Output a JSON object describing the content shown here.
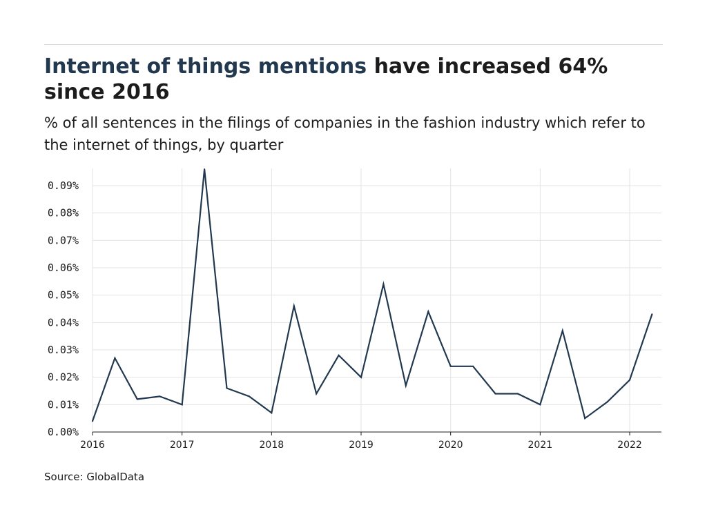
{
  "header": {
    "title_highlight": "Internet of things mentions",
    "title_rest": " have increased 64% since 2016",
    "subtitle": "% of all sentences in the filings of companies in the fashion industry which refer to the internet of things, by quarter"
  },
  "footer": {
    "source": "Source: GlobalData"
  },
  "colors": {
    "line": "#22384f",
    "highlight": "#22384f",
    "grid": "#e3e3e3",
    "axis": "#1c1c1c"
  },
  "chart_data": {
    "type": "line",
    "title": "Internet of things mentions have increased 64% since 2016",
    "subtitle": "% of all sentences in the filings of companies in the fashion industry which refer to the internet of things, by quarter",
    "xlabel": "",
    "ylabel": "",
    "x_ticks": [
      "2016",
      "2017",
      "2018",
      "2019",
      "2020",
      "2021",
      "2022"
    ],
    "y_ticks": [
      "0.00%",
      "0.01%",
      "0.02%",
      "0.03%",
      "0.04%",
      "0.05%",
      "0.06%",
      "0.07%",
      "0.08%",
      "0.09%"
    ],
    "ylim": [
      0,
      0.096
    ],
    "xlim": [
      "2016 Q1",
      "2022 Q3"
    ],
    "grid": true,
    "series": [
      {
        "x": [
          "2016 Q1",
          "2016 Q2",
          "2016 Q3",
          "2016 Q4",
          "2017 Q1",
          "2017 Q2",
          "2017 Q3",
          "2017 Q4",
          "2018 Q1",
          "2018 Q2",
          "2018 Q3",
          "2018 Q4",
          "2019 Q1",
          "2019 Q2",
          "2019 Q3",
          "2019 Q4",
          "2020 Q1",
          "2020 Q2",
          "2020 Q3",
          "2020 Q4",
          "2021 Q1",
          "2021 Q2",
          "2021 Q3",
          "2021 Q4",
          "2022 Q1",
          "2022 Q2"
        ],
        "values": [
          0.004,
          0.027,
          0.012,
          0.013,
          0.01,
          0.096,
          0.016,
          0.013,
          0.007,
          0.046,
          0.014,
          0.028,
          0.02,
          0.054,
          0.017,
          0.044,
          0.024,
          0.024,
          0.014,
          0.014,
          0.01,
          0.037,
          0.005,
          0.011,
          0.019,
          0.043
        ]
      }
    ]
  }
}
